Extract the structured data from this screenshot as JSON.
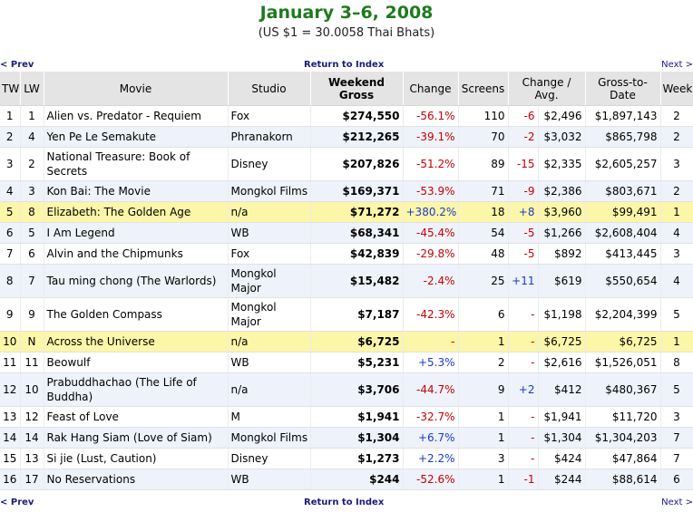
{
  "title": "January 3–6, 2008",
  "subtitle": "(US $1 = 30.0058 Thai Bhats)",
  "nav": {
    "prev": "< Prev",
    "index": "Return to Index",
    "next": "Next >"
  },
  "headers": [
    "TW",
    "LW",
    "Movie",
    "Studio",
    "Weekend Gross",
    "Change",
    "Screens",
    "Change / Avg.",
    "Gross-to-Date",
    "Week"
  ],
  "rows": [
    {
      "tw": "1",
      "lw": "1",
      "movie": "Alien vs. Predator - Requiem",
      "studio": "Fox",
      "gross": "$274,550",
      "change": "-56.1%",
      "screens": "110",
      "scr_change": "-6",
      "avg": "$2,496",
      "gtd": "$1,897,143",
      "week": "2"
    },
    {
      "tw": "2",
      "lw": "4",
      "movie": "Yen Pe Le Semakute",
      "studio": "Phranakorn",
      "gross": "$212,265",
      "change": "-39.1%",
      "screens": "70",
      "scr_change": "-2",
      "avg": "$3,032",
      "gtd": "$865,798",
      "week": "2"
    },
    {
      "tw": "3",
      "lw": "2",
      "movie": "National Treasure: Book of Secrets",
      "studio": "Disney",
      "gross": "$207,826",
      "change": "-51.2%",
      "screens": "89",
      "scr_change": "-15",
      "avg": "$2,335",
      "gtd": "$2,605,257",
      "week": "3"
    },
    {
      "tw": "4",
      "lw": "3",
      "movie": "Kon Bai: The Movie",
      "studio": "Mongkol Films",
      "gross": "$169,371",
      "change": "-53.9%",
      "screens": "71",
      "scr_change": "-9",
      "avg": "$2,386",
      "gtd": "$803,671",
      "week": "2"
    },
    {
      "tw": "5",
      "lw": "8",
      "movie": "Elizabeth: The Golden Age",
      "studio": "n/a",
      "gross": "$71,272",
      "change": "+380.2%",
      "screens": "18",
      "scr_change": "+8",
      "avg": "$3,960",
      "gtd": "$99,491",
      "week": "1"
    },
    {
      "tw": "6",
      "lw": "5",
      "movie": "I Am Legend",
      "studio": "WB",
      "gross": "$68,341",
      "change": "-45.4%",
      "screens": "54",
      "scr_change": "-5",
      "avg": "$1,266",
      "gtd": "$2,608,404",
      "week": "4"
    },
    {
      "tw": "7",
      "lw": "6",
      "movie": "Alvin and the Chipmunks",
      "studio": "Fox",
      "gross": "$42,839",
      "change": "-29.8%",
      "screens": "48",
      "scr_change": "-5",
      "avg": "$892",
      "gtd": "$413,445",
      "week": "3"
    },
    {
      "tw": "8",
      "lw": "7",
      "movie": "Tau ming chong (The Warlords)",
      "studio": "Mongkol Major",
      "gross": "$15,482",
      "change": "-2.4%",
      "screens": "25",
      "scr_change": "+11",
      "avg": "$619",
      "gtd": "$550,654",
      "week": "4"
    },
    {
      "tw": "9",
      "lw": "9",
      "movie": "The Golden Compass",
      "studio": "Mongkol Major",
      "gross": "$7,187",
      "change": "-42.3%",
      "screens": "6",
      "scr_change": "-",
      "avg": "$1,198",
      "gtd": "$2,204,399",
      "week": "5"
    },
    {
      "tw": "10",
      "lw": "N",
      "movie": "Across the Universe",
      "studio": "n/a",
      "gross": "$6,725",
      "change": "-",
      "screens": "1",
      "scr_change": "-",
      "avg": "$6,725",
      "gtd": "$6,725",
      "week": "1"
    },
    {
      "tw": "11",
      "lw": "11",
      "movie": "Beowulf",
      "studio": "WB",
      "gross": "$5,231",
      "change": "+5.3%",
      "screens": "2",
      "scr_change": "-",
      "avg": "$2,616",
      "gtd": "$1,526,051",
      "week": "8"
    },
    {
      "tw": "12",
      "lw": "10",
      "movie": "Prabuddhachao (The Life of Buddha)",
      "studio": "n/a",
      "gross": "$3,706",
      "change": "-44.7%",
      "screens": "9",
      "scr_change": "+2",
      "avg": "$412",
      "gtd": "$480,367",
      "week": "5"
    },
    {
      "tw": "13",
      "lw": "12",
      "movie": "Feast of Love",
      "studio": "M",
      "gross": "$1,941",
      "change": "-32.7%",
      "screens": "1",
      "scr_change": "-",
      "avg": "$1,941",
      "gtd": "$11,720",
      "week": "3"
    },
    {
      "tw": "14",
      "lw": "14",
      "movie": "Rak Hang Siam (Love of Siam)",
      "studio": "Mongkol Films",
      "gross": "$1,304",
      "change": "+6.7%",
      "screens": "1",
      "scr_change": "-",
      "avg": "$1,304",
      "gtd": "$1,304,203",
      "week": "7"
    },
    {
      "tw": "15",
      "lw": "13",
      "movie": "Si jie (Lust, Caution)",
      "studio": "Disney",
      "gross": "$1,273",
      "change": "+2.2%",
      "screens": "3",
      "scr_change": "-",
      "avg": "$424",
      "gtd": "$47,864",
      "week": "7"
    },
    {
      "tw": "16",
      "lw": "17",
      "movie": "No Reservations",
      "studio": "WB",
      "gross": "$244",
      "change": "-52.6%",
      "screens": "1",
      "scr_change": "-1",
      "avg": "$244",
      "gtd": "$88,614",
      "week": "6"
    }
  ],
  "colors": {
    "title": "#1e7a1e",
    "highlight_row": "#fbf6a8",
    "alt_row": "#eef2fa",
    "negative": "#c80000",
    "positive": "#1a3acc",
    "header_bg": "#e4e4e4"
  }
}
